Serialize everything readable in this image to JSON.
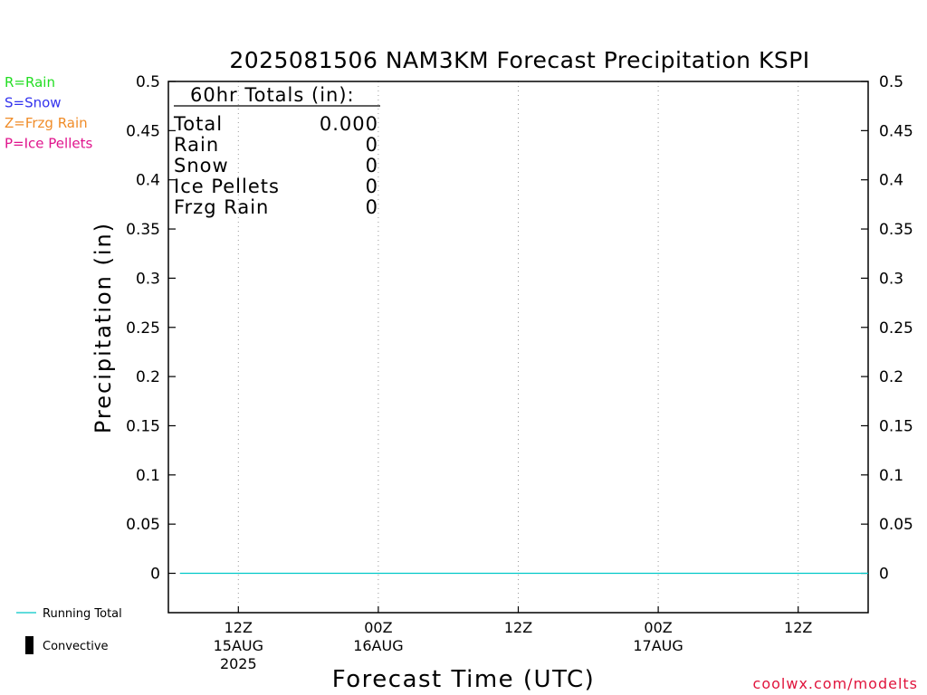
{
  "chart_data": {
    "type": "line",
    "title": "2025081506 NAM3KM Forecast Precipitation KSPI",
    "xlabel": "Forecast Time (UTC)",
    "ylabel": "Precipitation (in)",
    "ylim": [
      -0.04,
      0.5
    ],
    "yticks": [
      "0",
      "0.05",
      "0.1",
      "0.15",
      "0.2",
      "0.25",
      "0.3",
      "0.35",
      "0.4",
      "0.45",
      "0.5"
    ],
    "ytick_values": [
      0,
      0.05,
      0.1,
      0.15,
      0.2,
      0.25,
      0.3,
      0.35,
      0.4,
      0.45,
      0.5
    ],
    "xlim": [
      "2025-08-15 06Z",
      "2025-08-17 18Z"
    ],
    "xticks": [
      {
        "label": "12Z",
        "date": "15AUG",
        "year": "2025",
        "time": "2025-08-15 12Z"
      },
      {
        "label": "00Z",
        "date": "16AUG",
        "year": "",
        "time": "2025-08-16 00Z"
      },
      {
        "label": "12Z",
        "date": "",
        "year": "",
        "time": "2025-08-16 12Z"
      },
      {
        "label": "00Z",
        "date": "17AUG",
        "year": "",
        "time": "2025-08-17 00Z"
      },
      {
        "label": "12Z",
        "date": "",
        "year": "",
        "time": "2025-08-17 12Z"
      }
    ],
    "grid": "vertical dotted at x ticks",
    "series": [
      {
        "name": "Running Total",
        "color": "#00c8c8",
        "x": [
          "2025-08-15 07Z",
          "2025-08-17 18Z"
        ],
        "values": [
          0,
          0
        ]
      },
      {
        "name": "Convective",
        "color": "#000000",
        "values": []
      }
    ],
    "precip_type_key": [
      {
        "text": "R=Rain",
        "color": "#22dd22"
      },
      {
        "text": "S=Snow",
        "color": "#3333ee"
      },
      {
        "text": "Z=Frzg Rain",
        "color": "#f08c28"
      },
      {
        "text": "P=Ice Pellets",
        "color": "#e0148c"
      }
    ],
    "totals": {
      "header": "60hr Totals (in):",
      "rows": [
        {
          "label": "Total",
          "value": "0.000"
        },
        {
          "label": "Rain",
          "value": "0"
        },
        {
          "label": "Snow",
          "value": "0"
        },
        {
          "label": "Ice Pellets",
          "value": "0"
        },
        {
          "label": "Frzg Rain",
          "value": "0"
        }
      ]
    },
    "credit": "coolwx.com/modelts"
  }
}
